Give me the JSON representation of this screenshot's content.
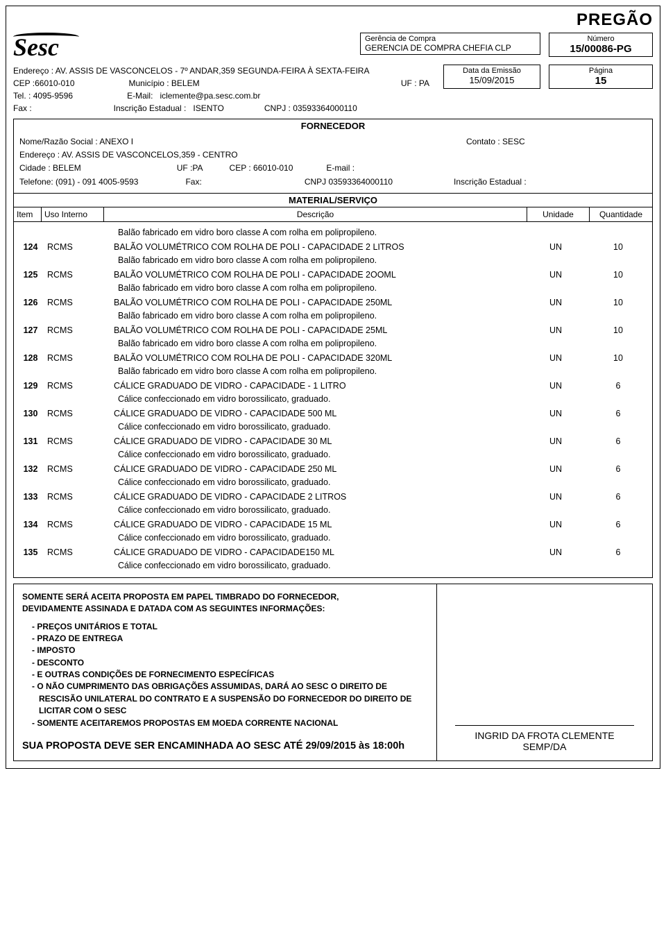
{
  "doc_title": "PREGÃO",
  "logo_text": "Sesc",
  "gerencia": {
    "label": "Gerência de Compra",
    "value": "GERENCIA DE COMPRA CHEFIA CLP"
  },
  "numero": {
    "label": "Número",
    "value": "15/00086-PG"
  },
  "endereco": {
    "label": "Endereço :",
    "value": "AV. ASSIS DE VASCONCELOS - 7º ANDAR,359 SEGUNDA-FEIRA À SEXTA-FEIRA"
  },
  "cep": {
    "label": "CEP :",
    "value": "66010-010"
  },
  "municipio": {
    "label": "Município :",
    "value": "BELEM"
  },
  "uf": {
    "label": "UF :",
    "value": "PA"
  },
  "tel": {
    "label": "Tel. :",
    "value": "4095-9596"
  },
  "email": {
    "label": "E-Mail:",
    "value": "iclemente@pa.sesc.com.br"
  },
  "fax": {
    "label": "Fax :",
    "value": ""
  },
  "insc": {
    "label": "Inscrição Estadual :",
    "value": "ISENTO"
  },
  "cnpj": {
    "label": "CNPJ :",
    "value": "03593364000110"
  },
  "emissao": {
    "label": "Data da Emissão",
    "value": "15/09/2015"
  },
  "pagina": {
    "label": "Página",
    "value": "15"
  },
  "fornecedor": {
    "title": "FORNECEDOR",
    "nome": {
      "label": "Nome/Razão Social :",
      "value": "ANEXO I"
    },
    "contato": {
      "label": "Contato :",
      "value": "SESC"
    },
    "endereco": {
      "label": "Endereço :",
      "value": "AV. ASSIS DE VASCONCELOS,359  - CENTRO"
    },
    "cidade": {
      "label": "Cidade :",
      "value": "BELEM"
    },
    "uf": {
      "label": "UF :",
      "value": "PA"
    },
    "cep": {
      "label": "CEP :",
      "value": "66010-010"
    },
    "email": {
      "label": "E-mail :",
      "value": ""
    },
    "telefone": {
      "label": "Telefone:",
      "value": "(091) - 091 4005-9593"
    },
    "fax": {
      "label": "Fax:",
      "value": ""
    },
    "cnpj": {
      "label": "CNPJ",
      "value": "03593364000110"
    },
    "insc": {
      "label": "Inscrição Estadual :",
      "value": ""
    }
  },
  "material": {
    "title": "MATERIAL/SERVIÇO",
    "headers": {
      "item": "Item",
      "uso": "Uso Interno",
      "desc": "Descrição",
      "un": "Unidade",
      "qt": "Quantidade"
    }
  },
  "pre_note": "Balão fabricado em vidro boro classe A com rolha em polipropileno.",
  "items": [
    {
      "n": "124",
      "uso": "RCMS",
      "desc": "BALÃO VOLUMÉTRICO COM ROLHA DE POLI - CAPACIDADE  2 LITROS",
      "un": "UN",
      "qt": "10",
      "note": "Balão fabricado em vidro boro classe A com rolha em polipropileno."
    },
    {
      "n": "125",
      "uso": "RCMS",
      "desc": "BALÃO VOLUMÉTRICO COM ROLHA DE POLI - CAPACIDADE  2OOML",
      "un": "UN",
      "qt": "10",
      "note": "Balão fabricado em vidro boro classe A com rolha em polipropileno."
    },
    {
      "n": "126",
      "uso": "RCMS",
      "desc": "BALÃO VOLUMÉTRICO COM ROLHA DE POLI - CAPACIDADE  250ML",
      "un": "UN",
      "qt": "10",
      "note": "Balão fabricado em vidro boro classe A com rolha em polipropileno."
    },
    {
      "n": "127",
      "uso": "RCMS",
      "desc": "BALÃO VOLUMÉTRICO COM ROLHA DE POLI - CAPACIDADE  25ML",
      "un": "UN",
      "qt": "10",
      "note": "Balão fabricado em vidro boro classe A com rolha em polipropileno."
    },
    {
      "n": "128",
      "uso": "RCMS",
      "desc": "BALÃO VOLUMÉTRICO COM ROLHA DE POLI - CAPACIDADE  320ML",
      "un": "UN",
      "qt": "10",
      "note": "Balão fabricado em vidro boro classe A com rolha em polipropileno."
    },
    {
      "n": "129",
      "uso": "RCMS",
      "desc": "CÁLICE GRADUADO DE VIDRO - CAPACIDADE - 1 LITRO",
      "un": "UN",
      "qt": "6",
      "note": "Cálice confeccionado em vidro borossilicato, graduado."
    },
    {
      "n": "130",
      "uso": "RCMS",
      "desc": "CÁLICE GRADUADO DE VIDRO - CAPACIDADE 500 ML",
      "un": "UN",
      "qt": "6",
      "note": "Cálice confeccionado em vidro borossilicato, graduado."
    },
    {
      "n": "131",
      "uso": "RCMS",
      "desc": "CÁLICE GRADUADO DE VIDRO - CAPACIDADE 30 ML",
      "un": "UN",
      "qt": "6",
      "note": "Cálice confeccionado em vidro borossilicato, graduado."
    },
    {
      "n": "132",
      "uso": "RCMS",
      "desc": "CÁLICE GRADUADO DE VIDRO - CAPACIDADE 250 ML",
      "un": "UN",
      "qt": "6",
      "note": "Cálice confeccionado em vidro borossilicato, graduado."
    },
    {
      "n": "133",
      "uso": "RCMS",
      "desc": "CÁLICE GRADUADO DE VIDRO - CAPACIDADE 2 LITROS",
      "un": "UN",
      "qt": "6",
      "note": "Cálice confeccionado em vidro borossilicato, graduado."
    },
    {
      "n": "134",
      "uso": "RCMS",
      "desc": "CÁLICE GRADUADO DE VIDRO - CAPACIDADE 15 ML",
      "un": "UN",
      "qt": "6",
      "note": "Cálice confeccionado em vidro borossilicato, graduado."
    },
    {
      "n": "135",
      "uso": "RCMS",
      "desc": "CÁLICE GRADUADO DE VIDRO - CAPACIDADE150 ML",
      "un": "UN",
      "qt": "6",
      "note": "Cálice confeccionado em vidro borossilicato, graduado."
    }
  ],
  "footer": {
    "header1": "SOMENTE SERÁ ACEITA PROPOSTA EM PAPEL TIMBRADO DO FORNECEDOR,",
    "header2": "DEVIDAMENTE ASSINADA E DATADA COM AS SEGUINTES INFORMAÇÕES:",
    "bullets": [
      "- PREÇOS UNITÁRIOS E TOTAL",
      "- PRAZO DE ENTREGA",
      "- IMPOSTO",
      "- DESCONTO",
      "- E OUTRAS CONDIÇÕES DE FORNECIMENTO ESPECÍFICAS",
      "- O NÃO CUMPRIMENTO DAS OBRIGAÇÕES ASSUMIDAS, DARÁ AO SESC O DIREITO DE RESCISÃO UNILATERAL DO CONTRATO E A SUSPENSÃO DO FORNECEDOR DO DIREITO DE LICITAR COM O SESC",
      "- SOMENTE ACEITAREMOS PROPOSTAS EM MOEDA CORRENTE NACIONAL"
    ],
    "signature_name": "INGRID DA FROTA CLEMENTE",
    "signature_dept": "SEMP/DA",
    "deadline": "SUA PROPOSTA DEVE SER ENCAMINHADA AO SESC ATÉ 29/09/2015 às 18:00h"
  }
}
